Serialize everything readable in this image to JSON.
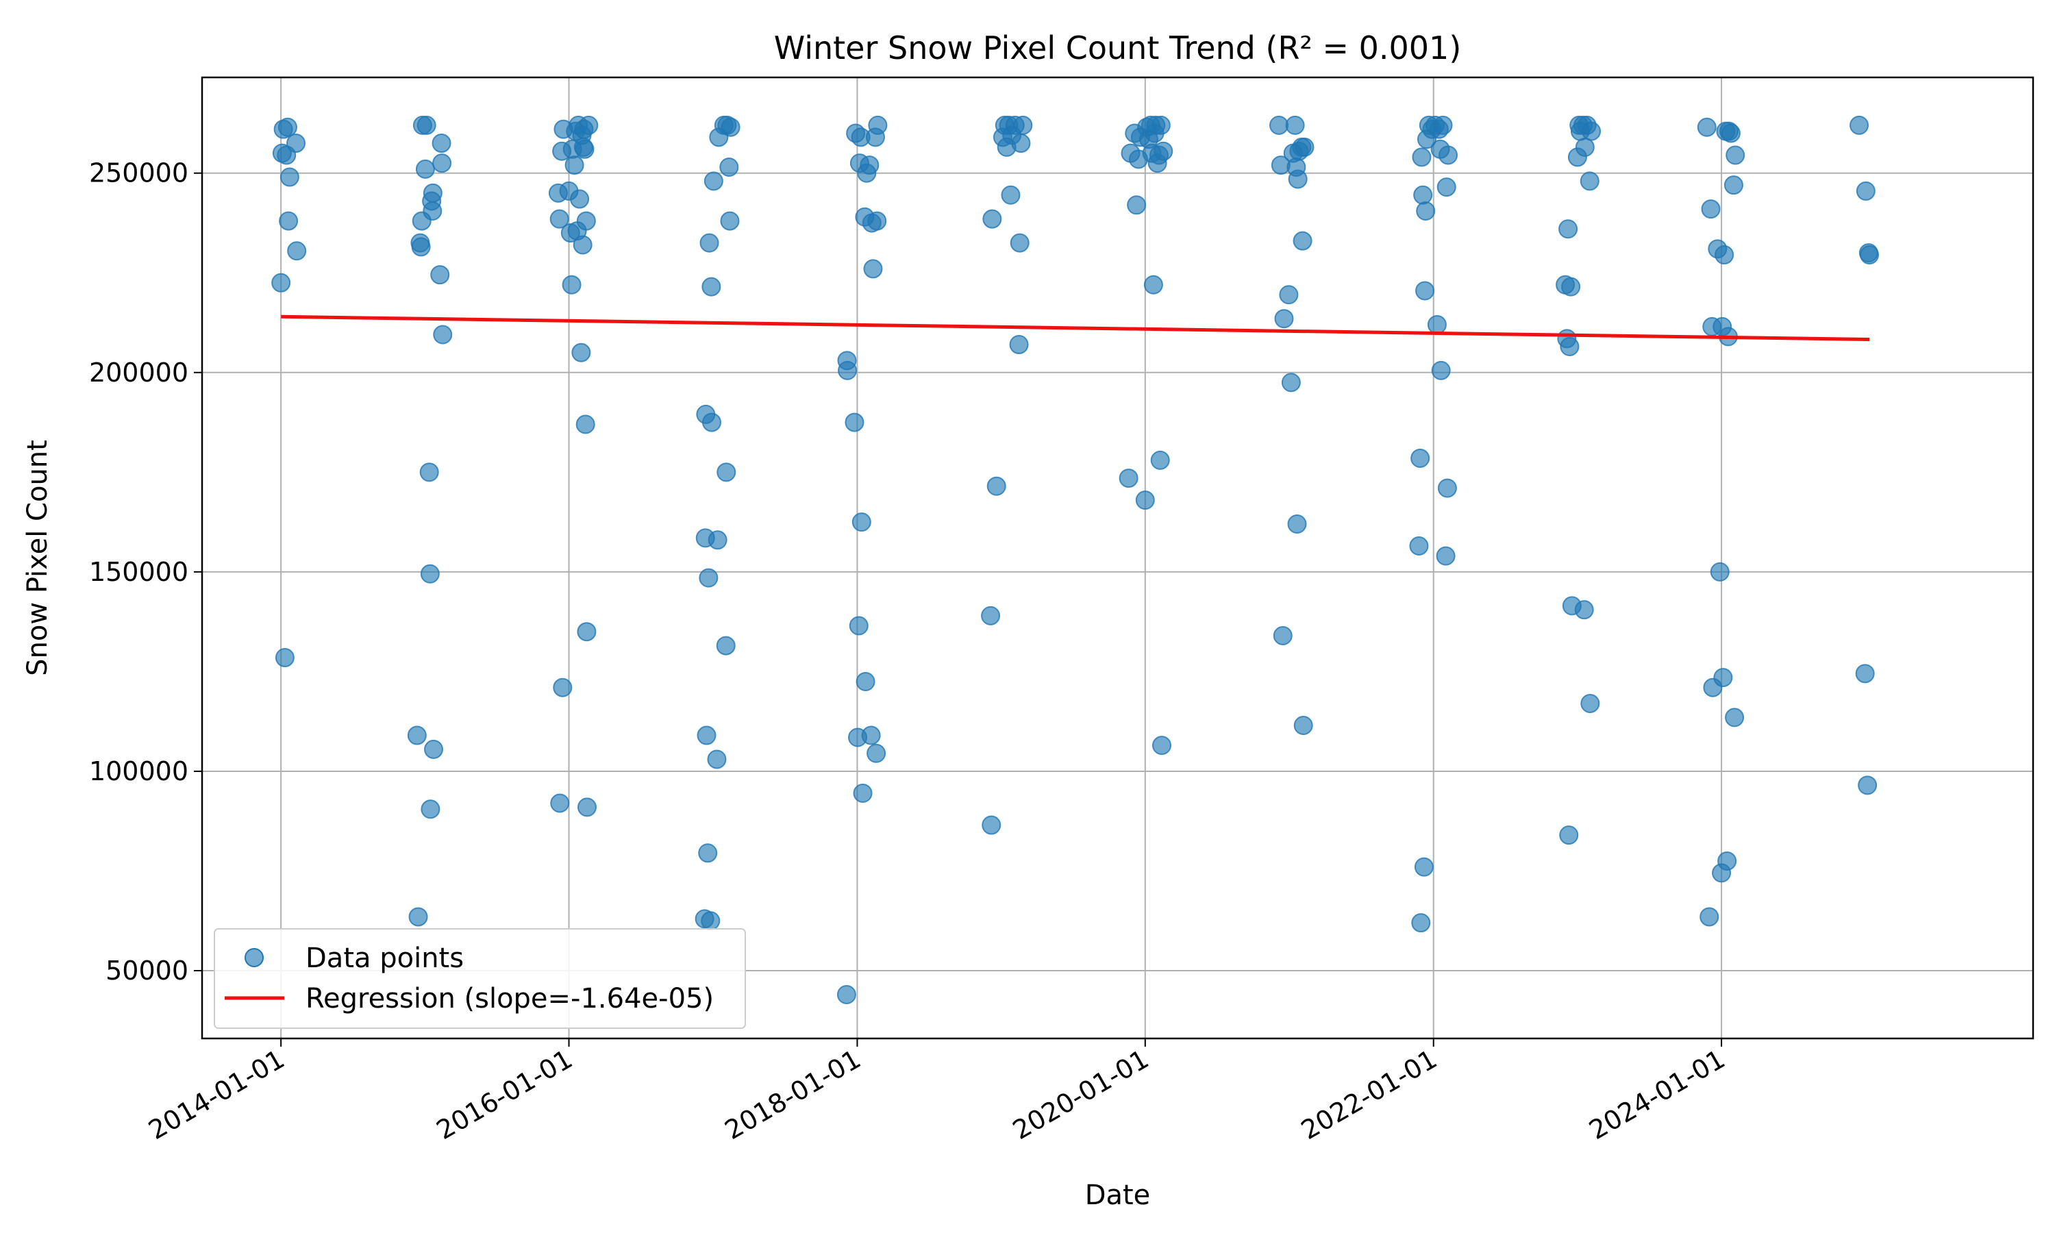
{
  "chart_data": {
    "type": "scatter",
    "title": "Winter Snow Pixel Count Trend (R² = 0.001)",
    "xlabel": "Date",
    "ylabel": "Snow Pixel Count",
    "xlim": [
      "2013-06-15",
      "2026-03-01"
    ],
    "ylim": [
      33000,
      274000
    ],
    "x_ticks": [
      "2014-01-01",
      "2016-01-01",
      "2018-01-01",
      "2020-01-01",
      "2022-01-01",
      "2024-01-01"
    ],
    "y_ticks": [
      50000,
      100000,
      150000,
      200000,
      250000
    ],
    "y_tick_labels": [
      "50000",
      "100000",
      "150000",
      "200000",
      "250000"
    ],
    "grid": true,
    "legend_position": "lower-left",
    "colors": {
      "points": "#1f77b4",
      "regression": "#ee1111"
    },
    "series": [
      {
        "name": "Data points",
        "kind": "scatter",
        "points": [
          [
            "2014-01-01",
            222500
          ],
          [
            "2014-01-04",
            255000
          ],
          [
            "2014-01-07",
            261000
          ],
          [
            "2014-01-11",
            128500
          ],
          [
            "2014-01-15",
            254500
          ],
          [
            "2014-01-18",
            261500
          ],
          [
            "2014-01-20",
            238000
          ],
          [
            "2014-01-23",
            249000
          ],
          [
            "2014-02-08",
            257500
          ],
          [
            "2014-02-10",
            230500
          ],
          [
            "2014-12-12",
            109000
          ],
          [
            "2014-12-15",
            63500
          ],
          [
            "2014-12-20",
            232500
          ],
          [
            "2014-12-22",
            231500
          ],
          [
            "2014-12-24",
            238000
          ],
          [
            "2014-12-26",
            262000
          ],
          [
            "2015-01-02",
            251000
          ],
          [
            "2015-01-05",
            262000
          ],
          [
            "2015-01-12",
            175000
          ],
          [
            "2015-01-14",
            149500
          ],
          [
            "2015-01-15",
            90500
          ],
          [
            "2015-01-18",
            243000
          ],
          [
            "2015-01-20",
            240500
          ],
          [
            "2015-01-21",
            245000
          ],
          [
            "2015-01-23",
            105500
          ],
          [
            "2015-02-08",
            224500
          ],
          [
            "2015-02-12",
            257500
          ],
          [
            "2015-02-13",
            252500
          ],
          [
            "2015-02-15",
            209500
          ],
          [
            "2015-12-05",
            245000
          ],
          [
            "2015-12-08",
            238500
          ],
          [
            "2015-12-09",
            92000
          ],
          [
            "2015-12-14",
            255500
          ],
          [
            "2015-12-16",
            121000
          ],
          [
            "2015-12-18",
            261000
          ],
          [
            "2016-01-01",
            245500
          ],
          [
            "2016-01-05",
            235000
          ],
          [
            "2016-01-08",
            222000
          ],
          [
            "2016-01-10",
            256000
          ],
          [
            "2016-01-15",
            252000
          ],
          [
            "2016-01-18",
            260500
          ],
          [
            "2016-01-22",
            235500
          ],
          [
            "2016-01-25",
            262000
          ],
          [
            "2016-01-28",
            243500
          ],
          [
            "2016-02-01",
            205000
          ],
          [
            "2016-02-03",
            259500
          ],
          [
            "2016-02-05",
            232000
          ],
          [
            "2016-02-07",
            256500
          ],
          [
            "2016-02-08",
            261000
          ],
          [
            "2016-02-10",
            256000
          ],
          [
            "2016-02-12",
            187000
          ],
          [
            "2016-02-14",
            238000
          ],
          [
            "2016-02-15",
            135000
          ],
          [
            "2016-02-16",
            91000
          ],
          [
            "2016-02-20",
            262000
          ],
          [
            "2016-12-10",
            63000
          ],
          [
            "2016-12-12",
            158500
          ],
          [
            "2016-12-13",
            189500
          ],
          [
            "2016-12-15",
            109000
          ],
          [
            "2016-12-18",
            79500
          ],
          [
            "2016-12-20",
            148500
          ],
          [
            "2016-12-22",
            232500
          ],
          [
            "2016-12-25",
            62500
          ],
          [
            "2016-12-27",
            221500
          ],
          [
            "2016-12-28",
            187500
          ],
          [
            "2017-01-02",
            248000
          ],
          [
            "2017-01-10",
            103000
          ],
          [
            "2017-01-12",
            158000
          ],
          [
            "2017-01-15",
            259000
          ],
          [
            "2017-01-28",
            262000
          ],
          [
            "2017-02-02",
            131500
          ],
          [
            "2017-02-03",
            175000
          ],
          [
            "2017-02-05",
            262000
          ],
          [
            "2017-02-10",
            251500
          ],
          [
            "2017-02-12",
            238000
          ],
          [
            "2017-02-14",
            261500
          ],
          [
            "2017-12-05",
            44000
          ],
          [
            "2017-12-06",
            203000
          ],
          [
            "2017-12-07",
            200500
          ],
          [
            "2017-12-25",
            187500
          ],
          [
            "2017-12-28",
            260000
          ],
          [
            "2018-01-02",
            108500
          ],
          [
            "2018-01-05",
            136500
          ],
          [
            "2018-01-07",
            252500
          ],
          [
            "2018-01-10",
            259000
          ],
          [
            "2018-01-12",
            162500
          ],
          [
            "2018-01-15",
            94500
          ],
          [
            "2018-01-20",
            239000
          ],
          [
            "2018-01-22",
            122500
          ],
          [
            "2018-01-25",
            250000
          ],
          [
            "2018-02-01",
            252000
          ],
          [
            "2018-02-05",
            109000
          ],
          [
            "2018-02-07",
            237500
          ],
          [
            "2018-02-10",
            226000
          ],
          [
            "2018-02-16",
            259000
          ],
          [
            "2018-02-18",
            104500
          ],
          [
            "2018-02-20",
            238000
          ],
          [
            "2018-02-22",
            262000
          ],
          [
            "2018-12-05",
            139000
          ],
          [
            "2018-12-07",
            86500
          ],
          [
            "2018-12-09",
            238500
          ],
          [
            "2018-12-20",
            171500
          ],
          [
            "2019-01-05",
            259000
          ],
          [
            "2019-01-10",
            262000
          ],
          [
            "2019-01-15",
            256500
          ],
          [
            "2019-01-20",
            262000
          ],
          [
            "2019-01-25",
            244500
          ],
          [
            "2019-01-28",
            259500
          ],
          [
            "2019-02-05",
            262000
          ],
          [
            "2019-02-15",
            207000
          ],
          [
            "2019-02-17",
            232500
          ],
          [
            "2019-02-20",
            257500
          ],
          [
            "2019-02-25",
            262000
          ],
          [
            "2019-11-20",
            173500
          ],
          [
            "2019-11-25",
            255000
          ],
          [
            "2019-12-05",
            260000
          ],
          [
            "2019-12-10",
            242000
          ],
          [
            "2019-12-15",
            253500
          ],
          [
            "2019-12-20",
            259000
          ],
          [
            "2020-01-01",
            168000
          ],
          [
            "2020-01-05",
            261500
          ],
          [
            "2020-01-10",
            258500
          ],
          [
            "2020-01-15",
            262000
          ],
          [
            "2020-01-18",
            255000
          ],
          [
            "2020-01-22",
            222000
          ],
          [
            "2020-01-25",
            260000
          ],
          [
            "2020-01-28",
            262000
          ],
          [
            "2020-02-01",
            252500
          ],
          [
            "2020-02-05",
            254500
          ],
          [
            "2020-02-08",
            178000
          ],
          [
            "2020-02-10",
            262000
          ],
          [
            "2020-02-12",
            106500
          ],
          [
            "2020-02-16",
            255500
          ],
          [
            "2020-12-05",
            262000
          ],
          [
            "2020-12-10",
            252000
          ],
          [
            "2020-12-15",
            134000
          ],
          [
            "2020-12-18",
            213500
          ],
          [
            "2020-12-30",
            219500
          ],
          [
            "2021-01-05",
            197500
          ],
          [
            "2021-01-10",
            255000
          ],
          [
            "2021-01-15",
            262000
          ],
          [
            "2021-01-18",
            251500
          ],
          [
            "2021-01-20",
            162000
          ],
          [
            "2021-01-22",
            248500
          ],
          [
            "2021-01-25",
            255500
          ],
          [
            "2021-02-01",
            256500
          ],
          [
            "2021-02-03",
            233000
          ],
          [
            "2021-02-05",
            111500
          ],
          [
            "2021-02-08",
            256500
          ],
          [
            "2021-11-25",
            156500
          ],
          [
            "2021-11-28",
            178500
          ],
          [
            "2021-11-30",
            62000
          ],
          [
            "2021-12-02",
            254000
          ],
          [
            "2021-12-05",
            244500
          ],
          [
            "2021-12-08",
            76000
          ],
          [
            "2021-12-10",
            220500
          ],
          [
            "2021-12-12",
            240500
          ],
          [
            "2021-12-15",
            258500
          ],
          [
            "2021-12-20",
            262000
          ],
          [
            "2021-12-28",
            261000
          ],
          [
            "2022-01-05",
            262000
          ],
          [
            "2022-01-10",
            212000
          ],
          [
            "2022-01-15",
            261000
          ],
          [
            "2022-01-18",
            256000
          ],
          [
            "2022-01-20",
            200500
          ],
          [
            "2022-01-25",
            262000
          ],
          [
            "2022-02-01",
            154000
          ],
          [
            "2022-02-03",
            246500
          ],
          [
            "2022-02-05",
            171000
          ],
          [
            "2022-02-07",
            254500
          ],
          [
            "2022-12-01",
            222000
          ],
          [
            "2022-12-05",
            208500
          ],
          [
            "2022-12-08",
            236000
          ],
          [
            "2022-12-10",
            84000
          ],
          [
            "2022-12-12",
            206500
          ],
          [
            "2022-12-15",
            221500
          ],
          [
            "2022-12-18",
            141500
          ],
          [
            "2023-01-01",
            254000
          ],
          [
            "2023-01-05",
            262000
          ],
          [
            "2023-01-08",
            260500
          ],
          [
            "2023-01-15",
            262000
          ],
          [
            "2023-01-18",
            140500
          ],
          [
            "2023-01-20",
            256500
          ],
          [
            "2023-01-25",
            262000
          ],
          [
            "2023-02-01",
            248000
          ],
          [
            "2023-02-02",
            117000
          ],
          [
            "2023-02-05",
            260500
          ],
          [
            "2023-11-25",
            261500
          ],
          [
            "2023-12-01",
            63500
          ],
          [
            "2023-12-05",
            241000
          ],
          [
            "2023-12-08",
            211500
          ],
          [
            "2023-12-10",
            121000
          ],
          [
            "2023-12-22",
            231000
          ],
          [
            "2023-12-28",
            150000
          ],
          [
            "2024-01-01",
            74500
          ],
          [
            "2024-01-03",
            211500
          ],
          [
            "2024-01-05",
            123500
          ],
          [
            "2024-01-08",
            229500
          ],
          [
            "2024-01-12",
            260500
          ],
          [
            "2024-01-15",
            77500
          ],
          [
            "2024-01-18",
            209000
          ],
          [
            "2024-01-20",
            260500
          ],
          [
            "2024-01-25",
            260000
          ],
          [
            "2024-02-01",
            247000
          ],
          [
            "2024-02-03",
            113500
          ],
          [
            "2024-02-05",
            254500
          ],
          [
            "2024-12-15",
            262000
          ],
          [
            "2024-12-30",
            124500
          ],
          [
            "2025-01-01",
            245500
          ],
          [
            "2025-01-05",
            96500
          ],
          [
            "2025-01-08",
            230000
          ],
          [
            "2025-01-10",
            229500
          ]
        ]
      },
      {
        "name": "Regression (slope=-1.64e-05)",
        "kind": "line",
        "points": [
          [
            "2014-01-01",
            214000
          ],
          [
            "2025-01-10",
            208300
          ]
        ]
      }
    ]
  }
}
